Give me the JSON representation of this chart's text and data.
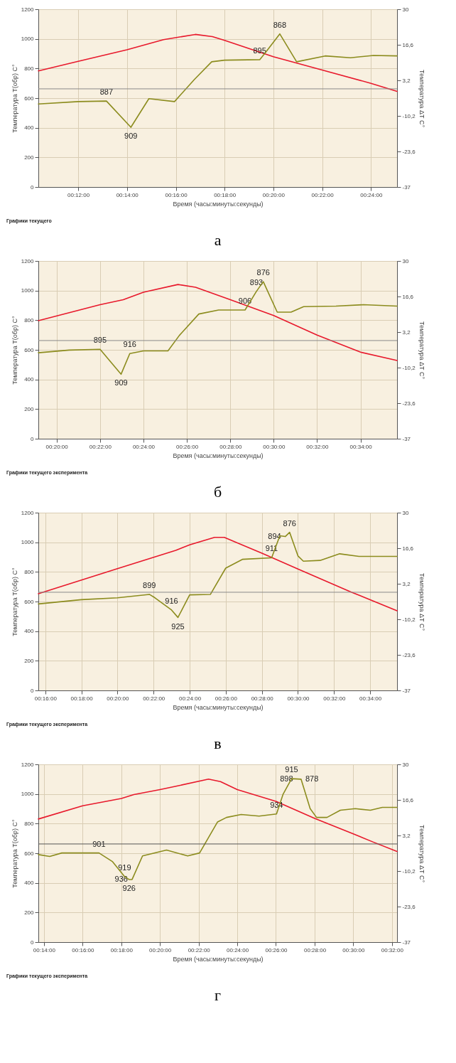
{
  "chart_data": [
    {
      "type": "line",
      "title": "а",
      "xlabel": "Время (часы:минуты:секунды)",
      "ylabel": "Температура Т(обр) С°",
      "y2label": "Температура ΔТ С°",
      "xlim": [
        0.1728,
        0.4178
      ],
      "xticks": [
        {
          "value": 0.2,
          "label": "00:12:00"
        },
        {
          "value": 0.2333,
          "label": "00:14:00"
        },
        {
          "value": 0.2667,
          "label": "00:16:00"
        },
        {
          "value": 0.3,
          "label": "00:18:00"
        },
        {
          "value": 0.3333,
          "label": "00:20:00"
        },
        {
          "value": 0.3667,
          "label": "00:22:00"
        },
        {
          "value": 0.4,
          "label": "00:24:00"
        }
      ],
      "ylim": [
        0,
        1200
      ],
      "yticks": [
        0,
        200,
        400,
        600,
        800,
        1000,
        1200
      ],
      "y2lim": [
        -37,
        30
      ],
      "y2ticks": [
        -37,
        {
          "value": -23.6,
          "label": "-23,6"
        },
        {
          "value": -10.2,
          "label": "-10,2"
        },
        {
          "value": 3.2,
          "label": "3,2"
        },
        {
          "value": 16.6,
          "label": "16,6"
        },
        30
      ],
      "grid": true,
      "ref_lines": [
        {
          "axis": "y2",
          "value": 0,
          "color": "#8a8a8a"
        }
      ],
      "series": [
        {
          "color": "#e8192c",
          "x": [
            0.1728,
            0.2,
            0.2333,
            0.2583,
            0.28,
            0.2917,
            0.3,
            0.3333,
            0.3667,
            0.4,
            0.4178
          ],
          "values": [
            784,
            848,
            926,
            995,
            1030,
            1015,
            990,
            880,
            790,
            700,
            646
          ]
        },
        {
          "color": "#8c8c1e",
          "axis": "y2",
          "x": [
            0.1728,
            0.2,
            0.2193,
            0.236,
            0.2483,
            0.2658,
            0.2795,
            0.2912,
            0.3,
            0.324,
            0.3278,
            0.3377,
            0.3492,
            0.3687,
            0.386,
            0.4017,
            0.4178
          ],
          "values": [
            -5.7,
            -4.8,
            -4.6,
            -14.5,
            -3.7,
            -4.8,
            3.6,
            10.2,
            10.8,
            11.0,
            13.6,
            20.7,
            10.2,
            12.4,
            11.7,
            12.6,
            12.4
          ]
        }
      ],
      "annotations": [
        {
          "text": "887",
          "x": 0.2193,
          "y": 580
        },
        {
          "text": "909",
          "x": 0.236,
          "y": 403
        },
        {
          "text": "895",
          "x": 0.324,
          "y": 860
        },
        {
          "text": "868",
          "x": 0.3377,
          "y": 1034
        },
        "Графики текущего"
      ]
    },
    {
      "type": "line",
      "title": "б",
      "xlabel": "Время (часы:минуты:секунды)",
      "ylabel": "Температура Т(обр) С°",
      "y2label": "Температура ΔТ С°",
      "xlim": [
        0.3193,
        0.5947
      ],
      "xticks": [
        {
          "value": 0.3333,
          "label": "00:20:00"
        },
        {
          "value": 0.3667,
          "label": "00:22:00"
        },
        {
          "value": 0.4,
          "label": "00:24:00"
        },
        {
          "value": 0.4333,
          "label": "00:26:00"
        },
        {
          "value": 0.4667,
          "label": "00:28:00"
        },
        {
          "value": 0.5,
          "label": "00:30:00"
        },
        {
          "value": 0.5333,
          "label": "00:32:00"
        },
        {
          "value": 0.5667,
          "label": "00:34:00"
        }
      ],
      "ylim": [
        0,
        1200
      ],
      "yticks": [
        0,
        200,
        400,
        600,
        800,
        1000,
        1200
      ],
      "y2lim": [
        -37,
        30
      ],
      "y2ticks": [
        -37,
        {
          "value": -23.6,
          "label": "-23,6"
        },
        {
          "value": -10.2,
          "label": "-10,2"
        },
        {
          "value": 3.2,
          "label": "3,2"
        },
        {
          "value": 16.6,
          "label": "16,6"
        },
        30
      ],
      "grid": true,
      "ref_lines": [
        {
          "axis": "y2",
          "value": 0,
          "color": "#8a8a8a"
        }
      ],
      "series": [
        {
          "color": "#e8192c",
          "x": [
            0.3193,
            0.3667,
            0.3845,
            0.4,
            0.4265,
            0.44,
            0.4667,
            0.5,
            0.5333,
            0.5667,
            0.5947
          ],
          "values": [
            797,
            905,
            938,
            989,
            1041,
            1022,
            938,
            832,
            700,
            584,
            528
          ]
        },
        {
          "color": "#8c8c1e",
          "axis": "y2",
          "x": [
            0.3193,
            0.343,
            0.3667,
            0.3828,
            0.3895,
            0.4,
            0.4188,
            0.4275,
            0.4425,
            0.4577,
            0.478,
            0.4867,
            0.492,
            0.5027,
            0.5133,
            0.523,
            0.5478,
            0.5688,
            0.5947
          ],
          "values": [
            -4.6,
            -3.6,
            -3.3,
            -12.7,
            -4.9,
            -3.9,
            -3.9,
            1.9,
            10.0,
            11.5,
            11.5,
            18.5,
            22.2,
            10.7,
            10.7,
            12.8,
            13.0,
            13.5,
            13.0
          ]
        }
      ],
      "annotations": [
        {
          "text": "895",
          "x": 0.3667,
          "y": 603
        },
        {
          "text": "909",
          "x": 0.3828,
          "y": 435
        },
        {
          "text": "916",
          "x": 0.3895,
          "y": 575
        },
        {
          "text": "906",
          "x": 0.478,
          "y": 868
        },
        {
          "text": "893",
          "x": 0.4867,
          "y": 994
        },
        {
          "text": "876",
          "x": 0.492,
          "y": 1060
        },
        "Графики текущего эксперимента"
      ]
    },
    {
      "type": "line",
      "title": "в",
      "xlabel": "Время (часы:минуты:секунды)",
      "ylabel": "Температура Т(обр) С°",
      "y2label": "Температура ΔТ С°",
      "xlim": [
        0.2603,
        0.5915
      ],
      "xticks": [
        {
          "value": 0.2667,
          "label": "00:16:00"
        },
        {
          "value": 0.3,
          "label": "00:18:00"
        },
        {
          "value": 0.3333,
          "label": "00:20:00"
        },
        {
          "value": 0.3667,
          "label": "00:22:00"
        },
        {
          "value": 0.4,
          "label": "00:24:00"
        },
        {
          "value": 0.4333,
          "label": "00:26:00"
        },
        {
          "value": 0.4667,
          "label": "00:28:00"
        },
        {
          "value": 0.5,
          "label": "00:30:00"
        },
        {
          "value": 0.5333,
          "label": "00:32:00"
        },
        {
          "value": 0.5667,
          "label": "00:34:00"
        }
      ],
      "ylim": [
        0,
        1200
      ],
      "yticks": [
        0,
        200,
        400,
        600,
        800,
        1000,
        1200
      ],
      "y2lim": [
        -37,
        30
      ],
      "y2ticks": [
        -37,
        {
          "value": -23.6,
          "label": "-23,6"
        },
        {
          "value": -10.2,
          "label": "-10,2"
        },
        {
          "value": 3.2,
          "label": "3,2"
        },
        {
          "value": 16.6,
          "label": "16,6"
        },
        30
      ],
      "grid": true,
      "ref_lines": [
        {
          "axis": "y2",
          "value": 0,
          "color": "#8a8a8a"
        }
      ],
      "series": [
        {
          "color": "#e8192c",
          "x": [
            0.2603,
            0.3333,
            0.3872,
            0.4,
            0.423,
            0.432,
            0.4667,
            0.5,
            0.5333,
            0.5492,
            0.5915
          ],
          "values": [
            653,
            822,
            946,
            983,
            1033,
            1033,
            926,
            820,
            714,
            664,
            538
          ]
        },
        {
          "color": "#8c8c1e",
          "axis": "y2",
          "x": [
            0.2603,
            0.3,
            0.3333,
            0.3628,
            0.368,
            0.3833,
            0.3892,
            0.4,
            0.4192,
            0.4333,
            0.4487,
            0.4757,
            0.4833,
            0.4883,
            0.4923,
            0.5,
            0.505,
            0.5205,
            0.5385,
            0.5563,
            0.5915
          ],
          "values": [
            -4.4,
            -2.8,
            -2.1,
            -0.8,
            -2.1,
            -6.7,
            -9.5,
            -1.0,
            -0.8,
            9.1,
            12.4,
            13.0,
            21.3,
            21.0,
            22.6,
            13.7,
            11.7,
            12.0,
            14.5,
            13.5,
            13.5
          ]
        }
      ],
      "annotations": [
        {
          "text": "899",
          "x": 0.3628,
          "y": 649
        },
        {
          "text": "916",
          "x": 0.3833,
          "y": 542
        },
        {
          "text": "925",
          "x": 0.3892,
          "y": 492
        },
        {
          "text": "911",
          "x": 0.4757,
          "y": 896
        },
        {
          "text": "894",
          "x": 0.4883,
          "y": 1039
        },
        {
          "text": "876",
          "x": 0.4923,
          "y": 1067
        },
        "Графики текущего эксперимента"
      ]
    },
    {
      "type": "line",
      "title": "г",
      "xlabel": "Время (часы:минуты:секунды)",
      "ylabel": "Температура Т(обр) С°",
      "y2label": "Температура ΔТ С°",
      "xlim": [
        0.2285,
        0.5377
      ],
      "xticks": [
        {
          "value": 0.2333,
          "label": "00:14:00"
        },
        {
          "value": 0.2667,
          "label": "00:16:00"
        },
        {
          "value": 0.3,
          "label": "00:18:00"
        },
        {
          "value": 0.3333,
          "label": "00:20:00"
        },
        {
          "value": 0.3667,
          "label": "00:22:00"
        },
        {
          "value": 0.4,
          "label": "00:24:00"
        },
        {
          "value": 0.4333,
          "label": "00:26:00"
        },
        {
          "value": 0.4667,
          "label": "00:28:00"
        },
        {
          "value": 0.5,
          "label": "00:30:00"
        },
        {
          "value": 0.5333,
          "label": "00:32:00"
        }
      ],
      "ylim": [
        0,
        1200
      ],
      "yticks": [
        0,
        200,
        400,
        600,
        800,
        1000,
        1200
      ],
      "y2lim": [
        -37,
        30
      ],
      "y2ticks": [
        -37,
        {
          "value": -23.6,
          "label": "-23,6"
        },
        {
          "value": -10.2,
          "label": "-10,2"
        },
        {
          "value": 3.2,
          "label": "3,2"
        },
        {
          "value": 16.6,
          "label": "16,6"
        },
        30
      ],
      "grid": true,
      "ref_lines": [
        {
          "axis": "y2",
          "value": 0,
          "color": "#555555"
        }
      ],
      "series": [
        {
          "color": "#e8192c",
          "x": [
            0.2285,
            0.2667,
            0.3,
            0.3108,
            0.3333,
            0.3493,
            0.3752,
            0.3855,
            0.4,
            0.4333,
            0.4667,
            0.5,
            0.5173,
            0.5377
          ],
          "values": [
            831,
            920,
            970,
            996,
            1030,
            1056,
            1100,
            1084,
            1030,
            950,
            835,
            731,
            675,
            612
          ]
        },
        {
          "color": "#8c8c1e",
          "axis": "y2",
          "x": [
            0.2285,
            0.2383,
            0.2487,
            0.2667,
            0.2808,
            0.2925,
            0.3028,
            0.3067,
            0.3093,
            0.3183,
            0.339,
            0.3572,
            0.3675,
            0.383,
            0.3907,
            0.4033,
            0.4188,
            0.4338,
            0.4395,
            0.4468,
            0.455,
            0.4628,
            0.4683,
            0.4773,
            0.4888,
            0.5017,
            0.5147,
            0.525,
            0.5377
          ],
          "values": [
            -4.0,
            -4.7,
            -3.4,
            -3.4,
            -3.4,
            -6.7,
            -12.3,
            -13.4,
            -13.4,
            -4.5,
            -2.3,
            -4.5,
            -3.4,
            8.3,
            10.0,
            11.1,
            10.5,
            11.3,
            18.8,
            24.6,
            24.4,
            13.3,
            10.0,
            10.0,
            12.7,
            13.3,
            12.7,
            13.8,
            13.8
          ]
        }
      ],
      "annotations": [
        {
          "text": "901",
          "x": 0.2808,
          "y": 602
        },
        {
          "text": "919",
          "x": 0.3028,
          "y": 442
        },
        {
          "text": "926",
          "x": 0.3067,
          "y": 422
        },
        {
          "text": "936",
          "x": 0.3093,
          "y": 422
        },
        {
          "text": "934",
          "x": 0.4338,
          "y": 865
        },
        {
          "text": "915",
          "x": 0.4468,
          "y": 1104
        },
        {
          "text": "898",
          "x": 0.4517,
          "y": 1100
        },
        {
          "text": "878",
          "x": 0.455,
          "y": 1100
        },
        "Графики текущего эксперимента"
      ]
    }
  ]
}
